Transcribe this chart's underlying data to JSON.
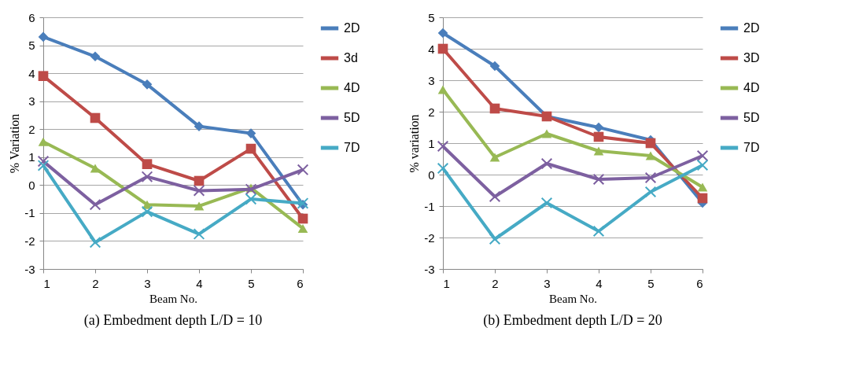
{
  "chart_data": [
    {
      "type": "line",
      "title": "(a) Embedment depth L/D = 10",
      "xlabel": "Beam No.",
      "ylabel": "% Variation",
      "categories": [
        "1",
        "2",
        "3",
        "4",
        "5",
        "6"
      ],
      "ylim": [
        -3,
        6
      ],
      "yticks": [
        -3,
        -2,
        -1,
        0,
        1,
        2,
        3,
        4,
        5,
        6
      ],
      "grid": "y",
      "legend": "right",
      "series": [
        {
          "name": "2D",
          "color": "#4a7ebb",
          "marker": "diamond",
          "values": [
            5.3,
            4.6,
            3.6,
            2.1,
            1.85,
            -0.7
          ]
        },
        {
          "name": "3d",
          "color": "#be4b48",
          "marker": "square",
          "values": [
            3.9,
            2.4,
            0.75,
            0.15,
            1.3,
            -1.2
          ]
        },
        {
          "name": "4D",
          "color": "#98b954",
          "marker": "triangle",
          "values": [
            1.55,
            0.6,
            -0.7,
            -0.75,
            -0.1,
            -1.55
          ]
        },
        {
          "name": "5D",
          "color": "#7d60a0",
          "marker": "cross",
          "values": [
            0.85,
            -0.7,
            0.3,
            -0.2,
            -0.15,
            0.55
          ]
        },
        {
          "name": "7D",
          "color": "#46aac5",
          "marker": "cross",
          "values": [
            0.7,
            -2.05,
            -0.95,
            -1.75,
            -0.5,
            -0.65
          ]
        }
      ]
    },
    {
      "type": "line",
      "title": "(b) Embedment depth L/D = 20",
      "xlabel": "Beam No.",
      "ylabel": "% variation",
      "categories": [
        "1",
        "2",
        "3",
        "4",
        "5",
        "6"
      ],
      "ylim": [
        -3,
        5
      ],
      "yticks": [
        -3,
        -2,
        -1,
        0,
        1,
        2,
        3,
        4,
        5
      ],
      "grid": "y",
      "legend": "right",
      "series": [
        {
          "name": "2D",
          "color": "#4a7ebb",
          "marker": "diamond",
          "values": [
            4.5,
            3.45,
            1.85,
            1.5,
            1.1,
            -0.9
          ]
        },
        {
          "name": "3D",
          "color": "#be4b48",
          "marker": "square",
          "values": [
            4.0,
            2.1,
            1.85,
            1.2,
            1.0,
            -0.75
          ]
        },
        {
          "name": "4D",
          "color": "#98b954",
          "marker": "triangle",
          "values": [
            2.7,
            0.55,
            1.3,
            0.75,
            0.6,
            -0.4
          ]
        },
        {
          "name": "5D",
          "color": "#7d60a0",
          "marker": "cross",
          "values": [
            0.9,
            -0.7,
            0.35,
            -0.15,
            -0.1,
            0.6
          ]
        },
        {
          "name": "7D",
          "color": "#46aac5",
          "marker": "cross",
          "values": [
            0.2,
            -2.05,
            -0.9,
            -1.8,
            -0.55,
            0.3
          ]
        }
      ]
    }
  ]
}
